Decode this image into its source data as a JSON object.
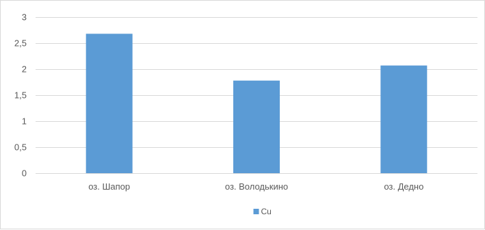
{
  "chart_data": {
    "type": "bar",
    "categories": [
      "оз. Шапор",
      "оз. Володькино",
      "оз. Дедно"
    ],
    "series": [
      {
        "name": "Cu",
        "values": [
          2.68,
          1.78,
          2.07
        ],
        "color": "#5b9bd5"
      }
    ],
    "ylim": [
      0,
      3
    ],
    "yticks": [
      0,
      0.5,
      1,
      1.5,
      2,
      2.5,
      3
    ],
    "ytick_labels": [
      "0",
      "0,5",
      "1",
      "1,5",
      "2",
      "2,5",
      "3"
    ],
    "grid": true,
    "gridline_color": "#d9d9d9",
    "legend_position": "bottom",
    "title": "",
    "xlabel": "",
    "ylabel": ""
  }
}
